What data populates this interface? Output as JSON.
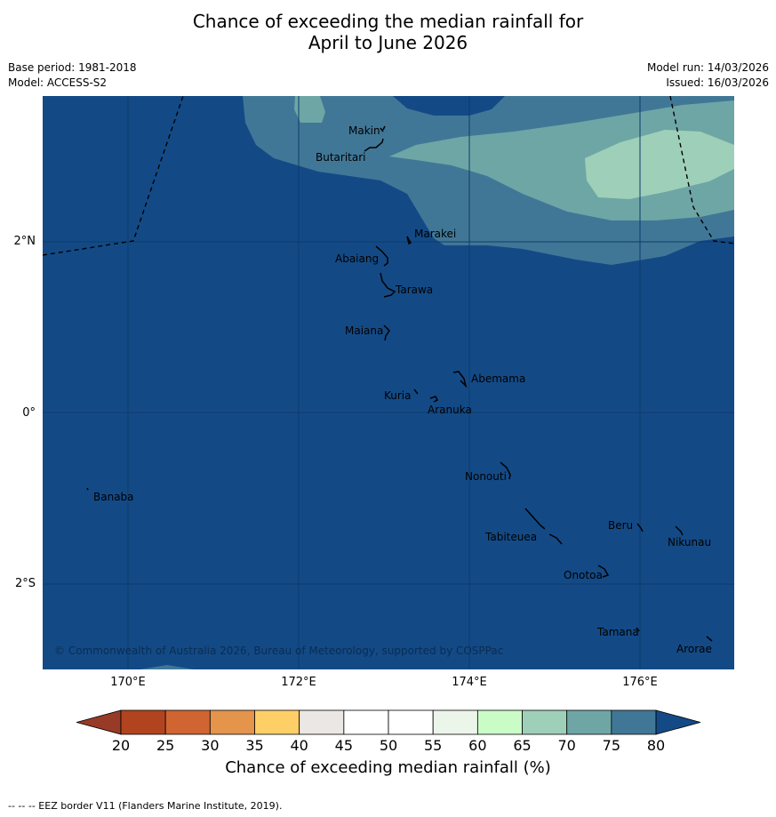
{
  "title": {
    "line1": "Chance of exceeding the median rainfall for",
    "line2": "April to June 2026"
  },
  "meta": {
    "base_period": "Base period: 1981-2018",
    "model": "Model: ACCESS-S2",
    "model_run": "Model run: 14/03/2026",
    "issued": "Issued: 16/03/2026"
  },
  "map": {
    "background_color": "#134a86",
    "lat_labels": [
      "2°N",
      "0°",
      "2°S"
    ],
    "lon_labels": [
      "170°E",
      "172°E",
      "174°E",
      "176°E"
    ],
    "copyright": "© Commonwealth of Australia 2026, Bureau of Meteorology, supported by COSPPac",
    "islands": [
      {
        "name": "Makin"
      },
      {
        "name": "Butaritari"
      },
      {
        "name": "Marakei"
      },
      {
        "name": "Abaiang"
      },
      {
        "name": "Tarawa"
      },
      {
        "name": "Maiana"
      },
      {
        "name": "Abemama"
      },
      {
        "name": "Kuria"
      },
      {
        "name": "Aranuka"
      },
      {
        "name": "Nonouti"
      },
      {
        "name": "Banaba"
      },
      {
        "name": "Beru"
      },
      {
        "name": "Nikunau"
      },
      {
        "name": "Tabiteuea"
      },
      {
        "name": "Onotoa"
      },
      {
        "name": "Tamana"
      },
      {
        "name": "Arorae"
      }
    ]
  },
  "colorbar": {
    "ticks": [
      "20",
      "25",
      "30",
      "35",
      "40",
      "45",
      "50",
      "55",
      "60",
      "65",
      "70",
      "75",
      "80"
    ],
    "colors": [
      "#b1441e",
      "#d06531",
      "#e4944b",
      "#fdcf66",
      "#ebe7e4",
      "#ffffff",
      "#ffffff",
      "#ecf5ea",
      "#cafcc8",
      "#9ecfb9",
      "#6ea6a6",
      "#417796"
    ],
    "under_color": "#983b26",
    "over_color": "#134a86",
    "label": "Chance of exceeding median rainfall (%)"
  },
  "footnote": "--  --  -- EEZ border V11 (Flanders Marine Institute, 2019)."
}
